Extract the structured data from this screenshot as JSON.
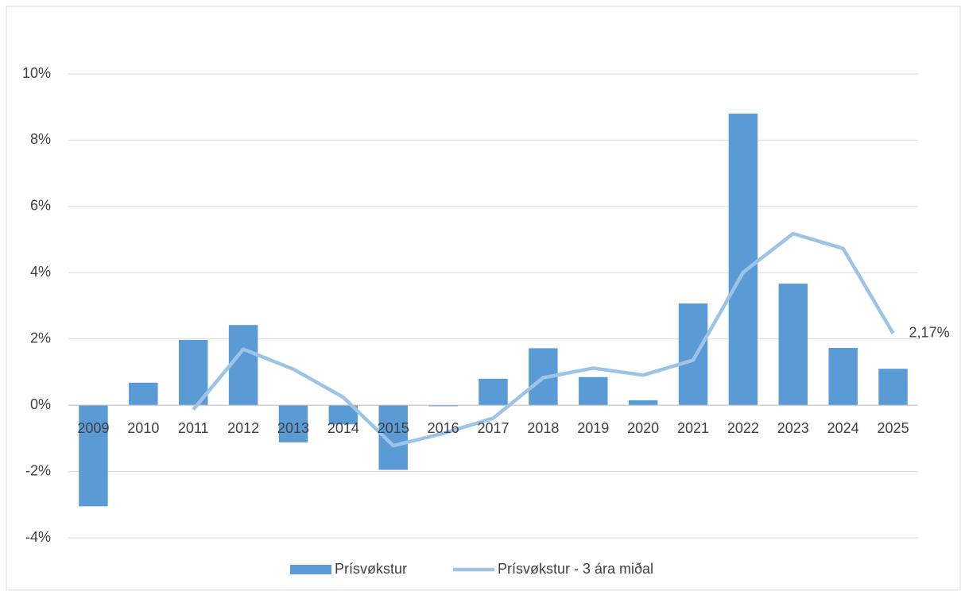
{
  "chart_data": {
    "type": "bar",
    "categories": [
      "2009",
      "2010",
      "2011",
      "2012",
      "2013",
      "2014",
      "2015",
      "2016",
      "2017",
      "2018",
      "2019",
      "2020",
      "2021",
      "2022",
      "2023",
      "2024",
      "2025"
    ],
    "series": [
      {
        "name": "Prísvøkstur",
        "type": "bar",
        "color": "#5b9bd5",
        "values": [
          -3.05,
          0.68,
          1.97,
          2.42,
          -1.12,
          -0.58,
          -1.95,
          -0.03,
          0.8,
          1.72,
          0.85,
          0.15,
          3.07,
          8.8,
          3.67,
          1.73,
          1.1
        ]
      },
      {
        "name": "Prísvøkstur - 3 ára miðal",
        "type": "line",
        "color": "#9dc3e6",
        "values": [
          null,
          null,
          -0.13,
          1.69,
          1.09,
          0.24,
          -1.22,
          -0.85,
          -0.39,
          0.83,
          1.12,
          0.91,
          1.36,
          4.01,
          5.18,
          4.73,
          2.17
        ],
        "value_labels": [
          null,
          null,
          null,
          null,
          null,
          null,
          null,
          null,
          null,
          null,
          null,
          null,
          null,
          null,
          null,
          null,
          "2,17%"
        ]
      }
    ],
    "ylim": [
      -4,
      10
    ],
    "yticks": [
      {
        "value": -4,
        "label": "-4%"
      },
      {
        "value": -2,
        "label": "-2%"
      },
      {
        "value": 0,
        "label": "0%"
      },
      {
        "value": 2,
        "label": "2%"
      },
      {
        "value": 4,
        "label": "4%"
      },
      {
        "value": 6,
        "label": "6%"
      },
      {
        "value": 8,
        "label": "8%"
      },
      {
        "value": 10,
        "label": "10%"
      }
    ],
    "grid": true,
    "legend": "bottom"
  }
}
